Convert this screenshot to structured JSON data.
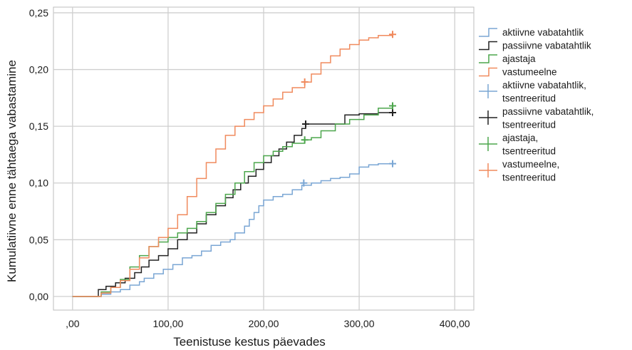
{
  "chart_data": {
    "type": "line",
    "step": true,
    "xlabel": "Teenistuse kestus päevades",
    "ylabel": "Kumulatiivne enne tähtaega vabastamine",
    "xlim": [
      -20,
      420
    ],
    "ylim": [
      -0.012,
      0.255
    ],
    "x_ticks": [
      0,
      100,
      200,
      300,
      400
    ],
    "x_tick_labels": [
      ",00",
      "100,00",
      "200,00",
      "300,00",
      "400,00"
    ],
    "y_ticks": [
      0,
      0.05,
      0.1,
      0.15,
      0.2,
      0.25
    ],
    "y_tick_labels": [
      "0,00",
      "0,05",
      "0,10",
      "0,15",
      "0,20",
      "0,25"
    ],
    "grid": true,
    "legend_position": "right",
    "series": [
      {
        "name": "aktiivne vabatahtlik",
        "color": "#7aa6d4",
        "x": [
          0,
          20,
          30,
          40,
          50,
          60,
          70,
          75,
          85,
          95,
          105,
          115,
          125,
          135,
          145,
          155,
          165,
          170,
          180,
          185,
          190,
          195,
          200,
          210,
          220,
          230,
          240,
          250,
          260,
          270,
          280,
          290,
          300,
          310,
          320,
          335
        ],
        "y": [
          0,
          0,
          0.002,
          0.004,
          0.006,
          0.01,
          0.013,
          0.016,
          0.02,
          0.024,
          0.028,
          0.034,
          0.036,
          0.04,
          0.045,
          0.048,
          0.05,
          0.056,
          0.062,
          0.068,
          0.074,
          0.08,
          0.085,
          0.088,
          0.09,
          0.094,
          0.098,
          0.1,
          0.102,
          0.104,
          0.105,
          0.108,
          0.114,
          0.116,
          0.117,
          0.117
        ]
      },
      {
        "name": "passiivne vabatahtlik",
        "color": "#222222",
        "x": [
          0,
          20,
          27,
          35,
          45,
          55,
          65,
          72,
          80,
          90,
          100,
          110,
          120,
          130,
          140,
          150,
          160,
          168,
          176,
          184,
          192,
          200,
          208,
          216,
          224,
          232,
          240,
          244,
          250,
          260,
          270,
          285,
          300,
          320,
          335
        ],
        "y": [
          0,
          0,
          0.006,
          0.009,
          0.012,
          0.016,
          0.021,
          0.026,
          0.032,
          0.036,
          0.042,
          0.05,
          0.056,
          0.064,
          0.072,
          0.08,
          0.087,
          0.094,
          0.1,
          0.106,
          0.112,
          0.118,
          0.124,
          0.13,
          0.136,
          0.142,
          0.148,
          0.152,
          0.152,
          0.152,
          0.152,
          0.16,
          0.161,
          0.162,
          0.162
        ]
      },
      {
        "name": "ajastaja",
        "color": "#4ca64c",
        "x": [
          0,
          18,
          30,
          40,
          50,
          60,
          70,
          80,
          90,
          100,
          110,
          120,
          130,
          140,
          150,
          160,
          170,
          180,
          190,
          200,
          210,
          220,
          230,
          243,
          250,
          260,
          275,
          290,
          305,
          320,
          335
        ],
        "y": [
          0,
          0,
          0.004,
          0.008,
          0.015,
          0.026,
          0.036,
          0.044,
          0.048,
          0.052,
          0.056,
          0.06,
          0.066,
          0.074,
          0.082,
          0.09,
          0.1,
          0.11,
          0.118,
          0.124,
          0.128,
          0.132,
          0.135,
          0.138,
          0.14,
          0.146,
          0.152,
          0.156,
          0.16,
          0.166,
          0.168
        ]
      },
      {
        "name": "vastumeelne",
        "color": "#f08a5d",
        "x": [
          0,
          20,
          30,
          40,
          50,
          60,
          70,
          80,
          90,
          100,
          110,
          120,
          130,
          140,
          150,
          160,
          170,
          180,
          190,
          200,
          210,
          220,
          230,
          243,
          250,
          260,
          270,
          280,
          290,
          300,
          310,
          320,
          335
        ],
        "y": [
          0,
          0,
          0.003,
          0.008,
          0.014,
          0.024,
          0.034,
          0.044,
          0.052,
          0.06,
          0.072,
          0.088,
          0.104,
          0.118,
          0.13,
          0.142,
          0.15,
          0.156,
          0.162,
          0.168,
          0.174,
          0.18,
          0.184,
          0.189,
          0.196,
          0.206,
          0.212,
          0.218,
          0.222,
          0.226,
          0.228,
          0.23,
          0.231
        ]
      }
    ],
    "censored_series": [
      {
        "name": "aktiivne vabatahtlik, tsentreeritud",
        "color": "#7aa6d4",
        "x": [
          242,
          335
        ],
        "y": [
          0.1,
          0.117
        ]
      },
      {
        "name": "passiivne vabatahtlik, tsentreeritud",
        "color": "#222222",
        "x": [
          244,
          335
        ],
        "y": [
          0.152,
          0.162
        ]
      },
      {
        "name": "ajastaja, tsentreeritud",
        "color": "#4ca64c",
        "x": [
          243,
          335
        ],
        "y": [
          0.138,
          0.168
        ]
      },
      {
        "name": "vastumeelne, tsentreeritud",
        "color": "#f08a5d",
        "x": [
          243,
          335
        ],
        "y": [
          0.189,
          0.231
        ]
      }
    ]
  }
}
